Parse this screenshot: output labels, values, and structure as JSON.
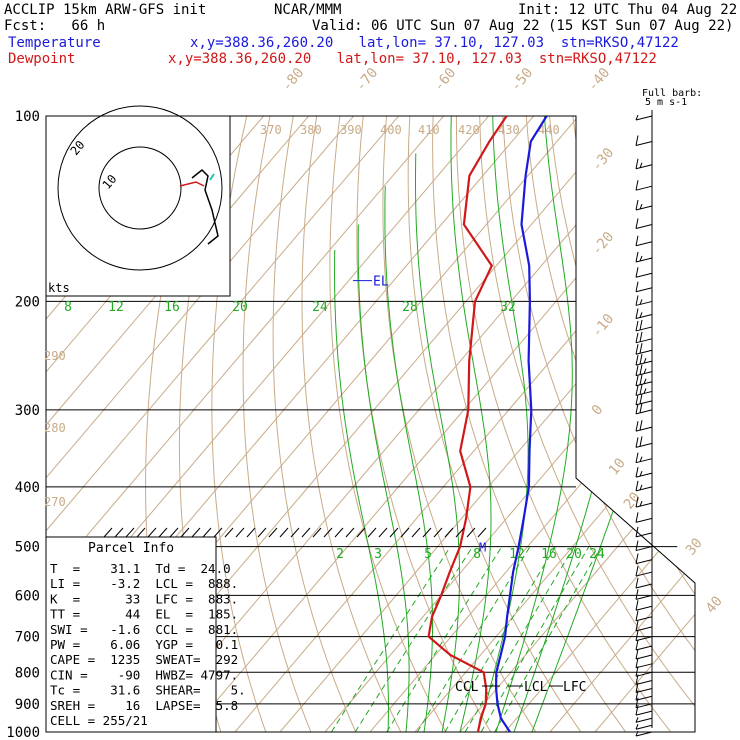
{
  "header": {
    "model": "ACCLIP 15km ARW-GFS init",
    "org": "NCAR/MMM",
    "init": "Init: 12 UTC Thu 04 Aug 22",
    "fcst": "Fcst:   66 h",
    "valid": "Valid: 06 UTC Sun 07 Aug 22 (15 KST Sun 07 Aug 22)"
  },
  "legend": {
    "temperature": {
      "label": "Temperature",
      "info": "x,y=388.36,260.20   lat,lon= 37.10, 127.03  stn=RKSO,47122",
      "color": "#1a1adc"
    },
    "dewpoint": {
      "label": "Dewpoint",
      "info": "x,y=388.36,260.20   lat,lon= 37.10, 127.03  stn=RKSO,47122",
      "color": "#d01818"
    }
  },
  "wind_key": {
    "title": "Full barb:",
    "value": "5 m s-1"
  },
  "parcel_info": {
    "title": "Parcel Info",
    "rows": [
      "T  =    31.1  Td =  24.0",
      "LI =    -3.2  LCL =  888.",
      "K  =      33  LFC =  883.",
      "TT =      44  EL  =  185.",
      "SWI =   -1.6  CCL =  881.",
      "PW =    6.06  YGP =   0.1",
      "CAPE =  1235  SWEAT=  292",
      "CIN =    -90  HWBZ= 4797.",
      "Tc =    31.6  SHEAR=    5.",
      "SREH =    16  LAPSE=  5.8",
      "CELL = 255/21"
    ]
  },
  "hodograph": {
    "units": "kts",
    "rings": [
      "20",
      "10"
    ]
  },
  "chart_data": {
    "type": "skew-t log-p",
    "pressure_levels_hpa": [
      100,
      200,
      300,
      400,
      500,
      600,
      700,
      800,
      900,
      1000
    ],
    "pressure_labels": [
      "100",
      "200",
      "300",
      "400",
      "500",
      "600",
      "700",
      "800",
      "900",
      "1000"
    ],
    "isotherm_labels_c": [
      "-80",
      "-70",
      "-60",
      "-50",
      "-40",
      "-30",
      "-20",
      "-10",
      "0",
      "10",
      "20",
      "30",
      "40"
    ],
    "theta_labels_k": [
      "370",
      "380",
      "390",
      "400",
      "410",
      "420",
      "430",
      "440",
      "290",
      "280",
      "270"
    ],
    "mixing_ratio_labels_upper": [
      "8",
      "12",
      "16",
      "20",
      "24",
      "28",
      "32"
    ],
    "mixing_ratio_labels_lower": [
      "2",
      "3",
      "5",
      "8",
      "12",
      "16",
      "20",
      "24"
    ],
    "series": [
      {
        "name": "Temperature",
        "color": "#1a1adc",
        "points": [
          {
            "p": 1000,
            "t": 31.1
          },
          {
            "p": 950,
            "t": 26.5
          },
          {
            "p": 900,
            "t": 23.0
          },
          {
            "p": 850,
            "t": 19.8
          },
          {
            "p": 800,
            "t": 16.8
          },
          {
            "p": 750,
            "t": 14.5
          },
          {
            "p": 700,
            "t": 12.0
          },
          {
            "p": 650,
            "t": 8.7
          },
          {
            "p": 600,
            "t": 5.3
          },
          {
            "p": 550,
            "t": 1.6
          },
          {
            "p": 500,
            "t": -2.0
          },
          {
            "p": 450,
            "t": -6.2
          },
          {
            "p": 400,
            "t": -11.0
          },
          {
            "p": 350,
            "t": -17.6
          },
          {
            "p": 300,
            "t": -25.0
          },
          {
            "p": 250,
            "t": -34.8
          },
          {
            "p": 200,
            "t": -45.8
          },
          {
            "p": 175,
            "t": -52.7
          },
          {
            "p": 150,
            "t": -62.2
          },
          {
            "p": 125,
            "t": -70.5
          },
          {
            "p": 110,
            "t": -75.8
          },
          {
            "p": 100,
            "t": -77.1
          }
        ]
      },
      {
        "name": "Dewpoint",
        "color": "#d01818",
        "points": [
          {
            "p": 1000,
            "t": 24.0
          },
          {
            "p": 950,
            "t": 22.0
          },
          {
            "p": 900,
            "t": 20.4
          },
          {
            "p": 850,
            "t": 17.6
          },
          {
            "p": 800,
            "t": 14.0
          },
          {
            "p": 750,
            "t": 3.3
          },
          {
            "p": 700,
            "t": -5.0
          },
          {
            "p": 650,
            "t": -8.0
          },
          {
            "p": 600,
            "t": -10.0
          },
          {
            "p": 550,
            "t": -12.5
          },
          {
            "p": 500,
            "t": -15.0
          },
          {
            "p": 450,
            "t": -19.0
          },
          {
            "p": 400,
            "t": -24.0
          },
          {
            "p": 350,
            "t": -33.0
          },
          {
            "p": 300,
            "t": -39.0
          },
          {
            "p": 250,
            "t": -48.0
          },
          {
            "p": 200,
            "t": -58.0
          },
          {
            "p": 175,
            "t": -61.0
          },
          {
            "p": 150,
            "t": -75.0
          },
          {
            "p": 125,
            "t": -83.0
          },
          {
            "p": 110,
            "t": -85.0
          },
          {
            "p": 100,
            "t": -86.0
          }
        ]
      }
    ],
    "annotations": [
      {
        "label": "EL",
        "p": 185
      },
      {
        "label": "M",
        "p": 500
      },
      {
        "label": "CCL",
        "p": 881
      },
      {
        "label": "LCL",
        "p": 888
      },
      {
        "label": "LFC",
        "p": 883
      }
    ],
    "wind_barbs": [
      {
        "p": 100,
        "spd": 5
      },
      {
        "p": 110,
        "spd": 10
      },
      {
        "p": 120,
        "spd": 15
      },
      {
        "p": 130,
        "spd": 10
      },
      {
        "p": 140,
        "spd": 15
      },
      {
        "p": 150,
        "spd": 10
      },
      {
        "p": 160,
        "spd": 10
      },
      {
        "p": 170,
        "spd": 15
      },
      {
        "p": 180,
        "spd": 10
      },
      {
        "p": 190,
        "spd": 10
      },
      {
        "p": 200,
        "spd": 15
      },
      {
        "p": 210,
        "spd": 15
      },
      {
        "p": 220,
        "spd": 20
      },
      {
        "p": 230,
        "spd": 20
      },
      {
        "p": 240,
        "spd": 20
      },
      {
        "p": 250,
        "spd": 25
      },
      {
        "p": 260,
        "spd": 25
      },
      {
        "p": 270,
        "spd": 25
      },
      {
        "p": 280,
        "spd": 25
      },
      {
        "p": 290,
        "spd": 20
      },
      {
        "p": 300,
        "spd": 20
      },
      {
        "p": 320,
        "spd": 20
      },
      {
        "p": 340,
        "spd": 20
      },
      {
        "p": 360,
        "spd": 15
      },
      {
        "p": 380,
        "spd": 15
      },
      {
        "p": 400,
        "spd": 15
      },
      {
        "p": 425,
        "spd": 15
      },
      {
        "p": 450,
        "spd": 10
      },
      {
        "p": 475,
        "spd": 10
      },
      {
        "p": 500,
        "spd": 10
      },
      {
        "p": 525,
        "spd": 10
      },
      {
        "p": 550,
        "spd": 10
      },
      {
        "p": 575,
        "spd": 10
      },
      {
        "p": 600,
        "spd": 10
      },
      {
        "p": 625,
        "spd": 10
      },
      {
        "p": 650,
        "spd": 10
      },
      {
        "p": 675,
        "spd": 10
      },
      {
        "p": 700,
        "spd": 10
      },
      {
        "p": 725,
        "spd": 10
      },
      {
        "p": 750,
        "spd": 10
      },
      {
        "p": 775,
        "spd": 10
      },
      {
        "p": 800,
        "spd": 10
      },
      {
        "p": 825,
        "spd": 10
      },
      {
        "p": 850,
        "spd": 10
      },
      {
        "p": 875,
        "spd": 10
      },
      {
        "p": 900,
        "spd": 10
      },
      {
        "p": 925,
        "spd": 10
      },
      {
        "p": 950,
        "spd": 5
      },
      {
        "p": 975,
        "spd": 5
      },
      {
        "p": 1000,
        "spd": 5
      }
    ]
  }
}
